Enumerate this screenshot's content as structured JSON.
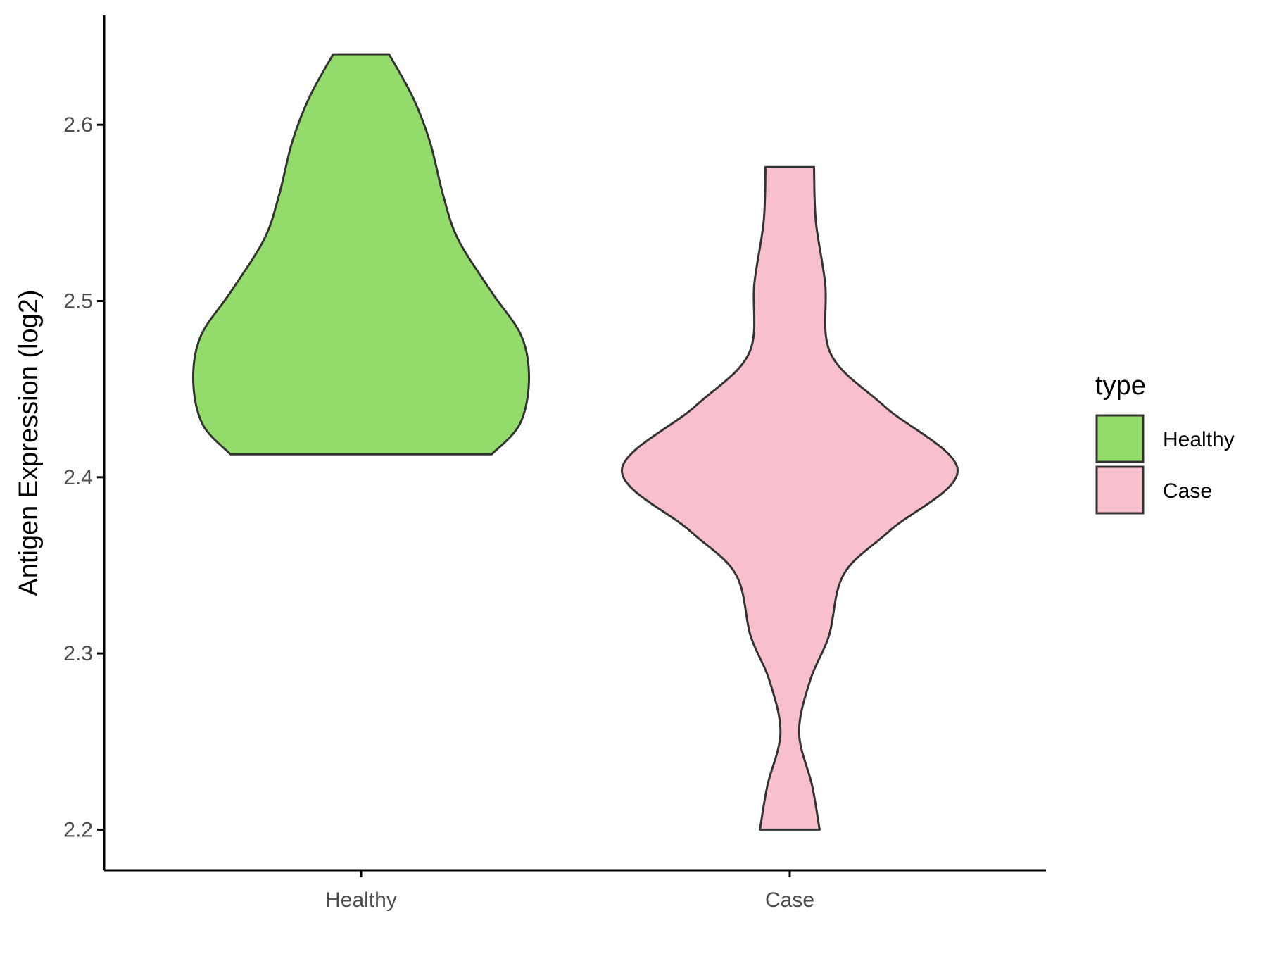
{
  "chart_data": {
    "type": "violin",
    "title": "",
    "xlabel": "",
    "ylabel": "Antigen Expression (log2)",
    "ylim": [
      2.177,
      2.662
    ],
    "yticks": [
      2.2,
      2.3,
      2.4,
      2.5,
      2.6
    ],
    "yticklabels": [
      "2.2",
      "2.3",
      "2.4",
      "2.5",
      "2.6"
    ],
    "categories": [
      "Healthy",
      "Case"
    ],
    "grid": false,
    "legend": {
      "title": "type",
      "position": "right",
      "entries": [
        "Healthy",
        "Case"
      ]
    },
    "series": [
      {
        "name": "Healthy",
        "color": "#93DC6B",
        "min": 2.413,
        "max": 2.64,
        "profile": [
          [
            2.413,
            0.7
          ],
          [
            2.43,
            0.85
          ],
          [
            2.455,
            0.9
          ],
          [
            2.48,
            0.86
          ],
          [
            2.505,
            0.7
          ],
          [
            2.535,
            0.52
          ],
          [
            2.56,
            0.44
          ],
          [
            2.59,
            0.37
          ],
          [
            2.615,
            0.28
          ],
          [
            2.64,
            0.15
          ]
        ]
      },
      {
        "name": "Case",
        "color": "#F8C0CC",
        "min": 2.2,
        "max": 2.576,
        "profile": [
          [
            2.2,
            0.16
          ],
          [
            2.225,
            0.12
          ],
          [
            2.255,
            0.05
          ],
          [
            2.285,
            0.11
          ],
          [
            2.31,
            0.21
          ],
          [
            2.345,
            0.29
          ],
          [
            2.37,
            0.54
          ],
          [
            2.404,
            0.9
          ],
          [
            2.44,
            0.51
          ],
          [
            2.47,
            0.22
          ],
          [
            2.51,
            0.19
          ],
          [
            2.545,
            0.14
          ],
          [
            2.576,
            0.13
          ]
        ]
      }
    ],
    "outline_color": "#333333"
  }
}
